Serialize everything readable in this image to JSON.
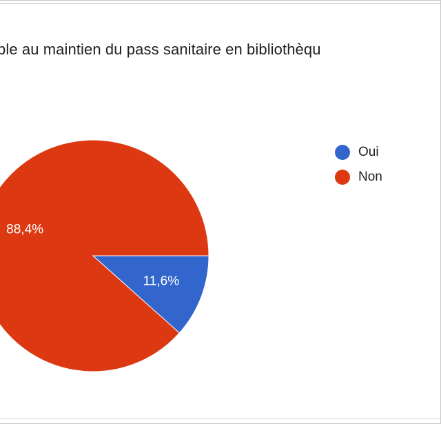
{
  "chart_data": {
    "type": "pie",
    "title": "ple au maintien du pass sanitaire en bibliothèqu",
    "categories": [
      "Oui",
      "Non"
    ],
    "values": [
      11.6,
      88.4
    ],
    "value_labels": [
      "11,6%",
      "88,4%"
    ],
    "colors": [
      "#3366cc",
      "#dc3912"
    ],
    "legend_position": "right",
    "start_angle_deg": 0,
    "direction": "clockwise"
  }
}
